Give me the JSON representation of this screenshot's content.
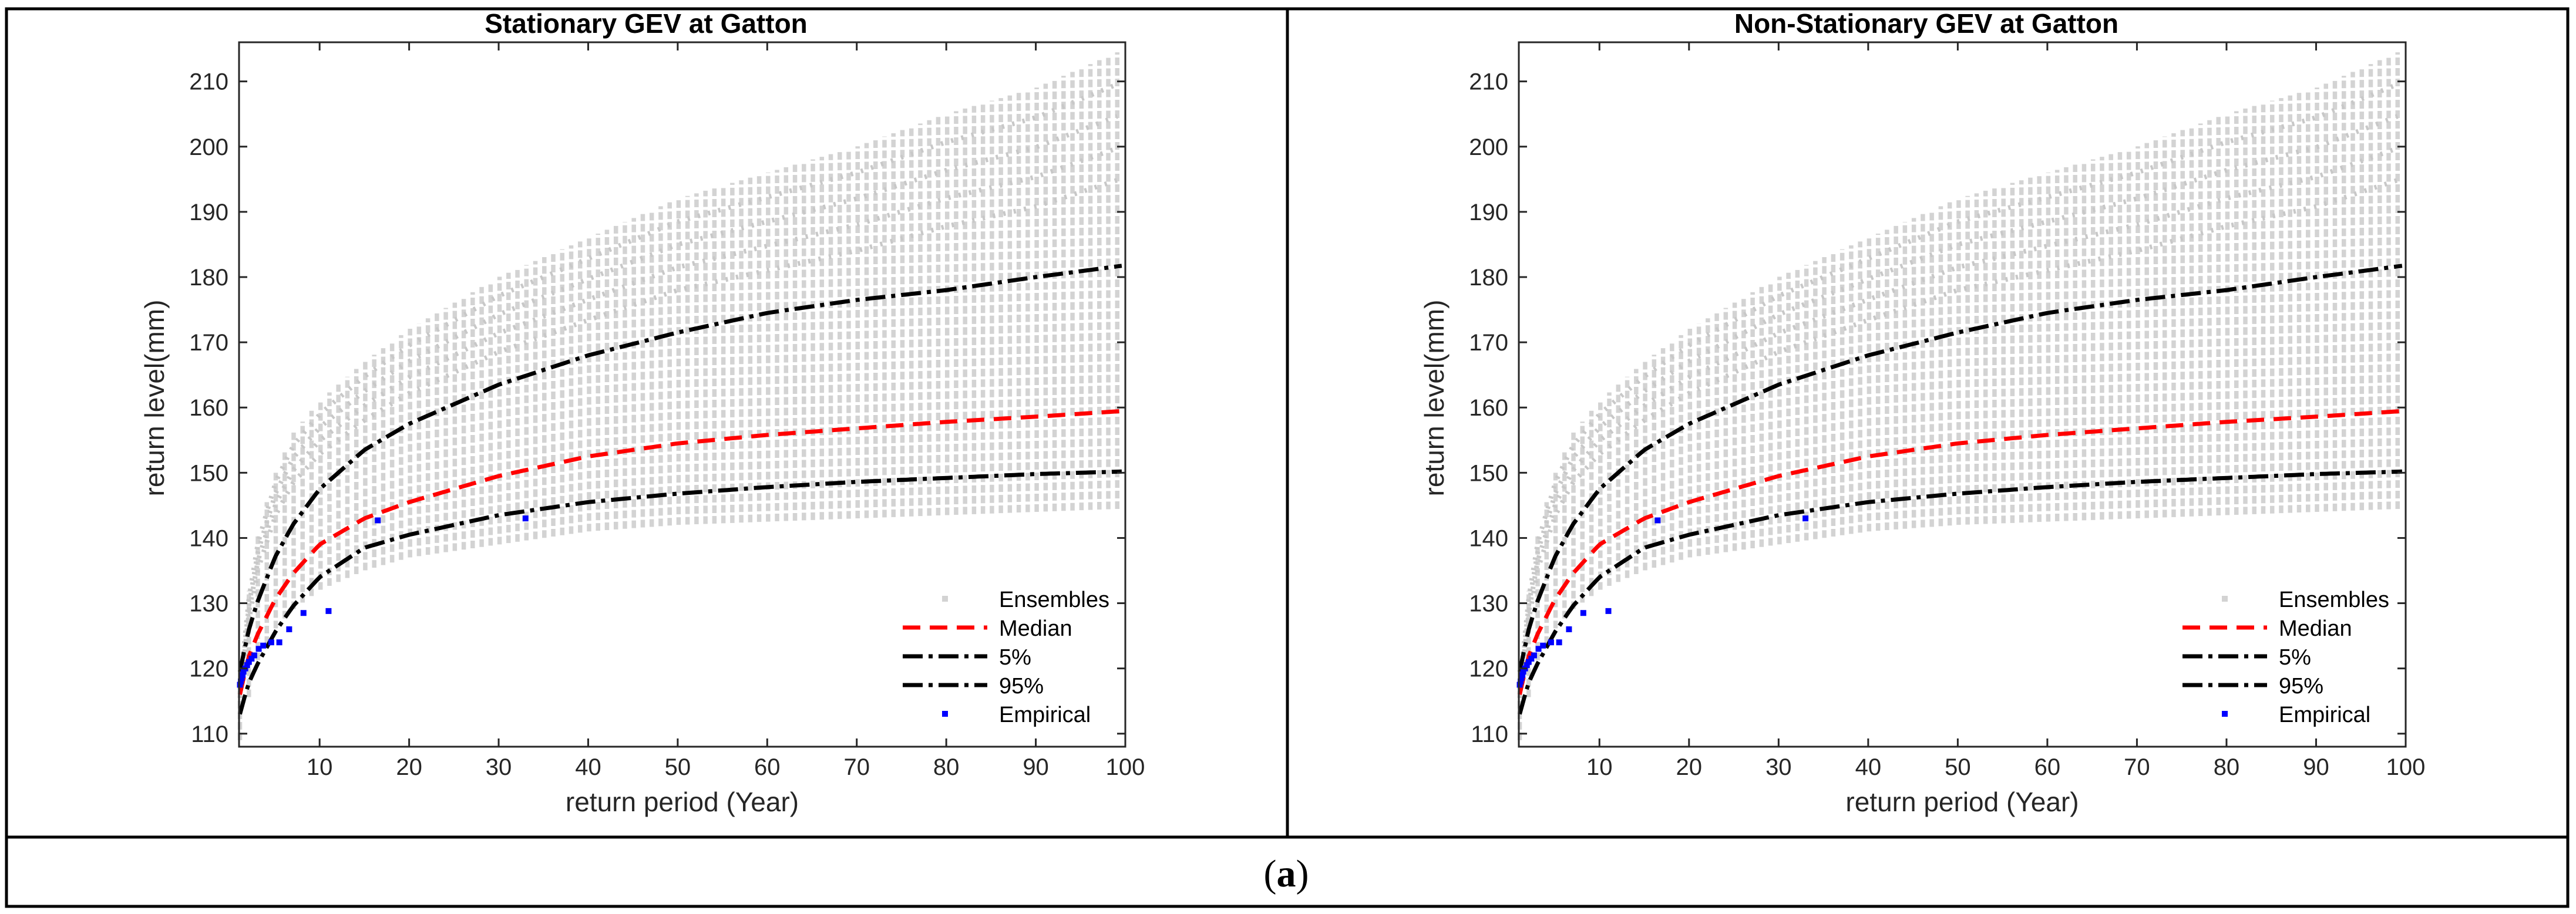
{
  "caption": {
    "open": "(",
    "letter": "a",
    "close": ")"
  },
  "legend_entries": [
    "Ensembles",
    "Median",
    "5%",
    "95%",
    "Empirical"
  ],
  "colors": {
    "ensembles": "#d3d3d3",
    "median": "#ff0000",
    "bounds": "#000000",
    "empirical": "#0000ff",
    "frame": "#000000",
    "background": "#ffffff"
  },
  "chart_data": [
    {
      "type": "line",
      "title": "Stationary GEV at Gatton",
      "xlabel": "return period (Year)",
      "ylabel": "return level(mm)",
      "xlim": [
        1,
        100
      ],
      "ylim": [
        108,
        216
      ],
      "xticks": [
        10,
        20,
        30,
        40,
        50,
        60,
        70,
        80,
        90,
        100
      ],
      "yticks": [
        110,
        120,
        130,
        140,
        150,
        160,
        170,
        180,
        190,
        200,
        210
      ],
      "grid": false,
      "legend": "bottom-right",
      "series": [
        {
          "name": "Ensembles",
          "style": "grey vertical bands",
          "x": [
            1.1,
            2,
            3,
            5,
            7,
            10,
            15,
            20,
            30,
            40,
            50,
            60,
            70,
            80,
            90,
            100
          ],
          "low": [
            109,
            115,
            121,
            126,
            129,
            132,
            135,
            137,
            139,
            141,
            142,
            142.5,
            143,
            143.5,
            144,
            144.5
          ],
          "high": [
            118,
            131,
            140,
            150,
            156,
            161,
            167,
            172,
            180,
            186,
            192,
            196,
            200,
            205,
            209,
            215
          ]
        },
        {
          "name": "Median",
          "x": [
            1.1,
            2,
            3,
            5,
            7,
            10,
            15,
            20,
            30,
            40,
            50,
            60,
            70,
            80,
            90,
            100
          ],
          "values": [
            116,
            121.5,
            125,
            130.5,
            134.5,
            139,
            143,
            145.5,
            149.5,
            152.5,
            154.5,
            155.8,
            156.8,
            157.8,
            158.6,
            159.5
          ]
        },
        {
          "name": "5%",
          "x": [
            1.1,
            2,
            3,
            5,
            7,
            10,
            15,
            20,
            30,
            40,
            50,
            60,
            70,
            80,
            90,
            100
          ],
          "values": [
            113,
            117.5,
            120.5,
            125.5,
            129.5,
            134,
            138.5,
            140.5,
            143.5,
            145.5,
            146.8,
            147.8,
            148.6,
            149.2,
            149.8,
            150.2
          ]
        },
        {
          "name": "95%",
          "x": [
            1.1,
            2,
            3,
            5,
            7,
            10,
            15,
            20,
            30,
            40,
            50,
            60,
            70,
            80,
            90,
            100
          ],
          "values": [
            119.5,
            125.5,
            130,
            137,
            142,
            147.5,
            153.5,
            157.5,
            163.5,
            168,
            171.5,
            174.5,
            176.5,
            178,
            180,
            181.8
          ]
        },
        {
          "name": "Empirical",
          "x": [
            1.1,
            1.2,
            1.3,
            1.4,
            1.5,
            1.7,
            1.9,
            2.1,
            2.4,
            2.7,
            3.2,
            3.7,
            4.6,
            5.5,
            6.6,
            8.2,
            11,
            16.5,
            33
          ],
          "values": [
            117.5,
            118,
            118.5,
            119,
            119.5,
            120,
            120.5,
            121,
            121.5,
            122,
            123,
            123.5,
            124,
            124,
            126,
            128.5,
            128.8,
            142.7,
            143
          ]
        }
      ]
    },
    {
      "type": "line",
      "title": "Non-Stationary GEV at Gatton",
      "xlabel": "return period (Year)",
      "ylabel": "return level(mm)",
      "xlim": [
        1,
        100
      ],
      "ylim": [
        108,
        216
      ],
      "xticks": [
        10,
        20,
        30,
        40,
        50,
        60,
        70,
        80,
        90,
        100
      ],
      "yticks": [
        110,
        120,
        130,
        140,
        150,
        160,
        170,
        180,
        190,
        200,
        210
      ],
      "grid": false,
      "legend": "bottom-right",
      "series": [
        {
          "name": "Ensembles",
          "style": "grey vertical bands",
          "x": [
            1.1,
            2,
            3,
            5,
            7,
            10,
            15,
            20,
            30,
            40,
            50,
            60,
            70,
            80,
            90,
            100
          ],
          "low": [
            109,
            115,
            121,
            126,
            129,
            132,
            135,
            137,
            139,
            141,
            142,
            142.5,
            143,
            143.5,
            144,
            144.5
          ],
          "high": [
            118,
            131,
            140,
            150,
            156,
            161,
            167,
            172,
            180,
            186,
            192,
            196,
            200,
            205,
            209,
            215
          ]
        },
        {
          "name": "Median",
          "x": [
            1.1,
            2,
            3,
            5,
            7,
            10,
            15,
            20,
            30,
            40,
            50,
            60,
            70,
            80,
            90,
            100
          ],
          "values": [
            116,
            121.5,
            125,
            130.5,
            134.5,
            139,
            143,
            145.5,
            149.5,
            152.5,
            154.5,
            155.8,
            156.8,
            157.8,
            158.6,
            159.5
          ]
        },
        {
          "name": "5%",
          "x": [
            1.1,
            2,
            3,
            5,
            7,
            10,
            15,
            20,
            30,
            40,
            50,
            60,
            70,
            80,
            90,
            100
          ],
          "values": [
            113,
            117.5,
            120.5,
            125.5,
            129.5,
            134,
            138.5,
            140.5,
            143.5,
            145.5,
            146.8,
            147.8,
            148.6,
            149.2,
            149.8,
            150.2
          ]
        },
        {
          "name": "95%",
          "x": [
            1.1,
            2,
            3,
            5,
            7,
            10,
            15,
            20,
            30,
            40,
            50,
            60,
            70,
            80,
            90,
            100
          ],
          "values": [
            119.5,
            125.5,
            130,
            137,
            142,
            147.5,
            153.5,
            157.5,
            163.5,
            168,
            171.5,
            174.5,
            176.5,
            178,
            180,
            181.8
          ]
        },
        {
          "name": "Empirical",
          "x": [
            1.1,
            1.2,
            1.3,
            1.4,
            1.5,
            1.7,
            1.9,
            2.1,
            2.4,
            2.7,
            3.2,
            3.7,
            4.6,
            5.5,
            6.6,
            8.2,
            11,
            16.5,
            33
          ],
          "values": [
            117.5,
            118,
            118.5,
            119,
            119.5,
            120,
            120.5,
            121,
            121.5,
            122,
            123,
            123.5,
            124,
            124,
            126,
            128.5,
            128.8,
            142.7,
            143
          ]
        }
      ]
    }
  ]
}
